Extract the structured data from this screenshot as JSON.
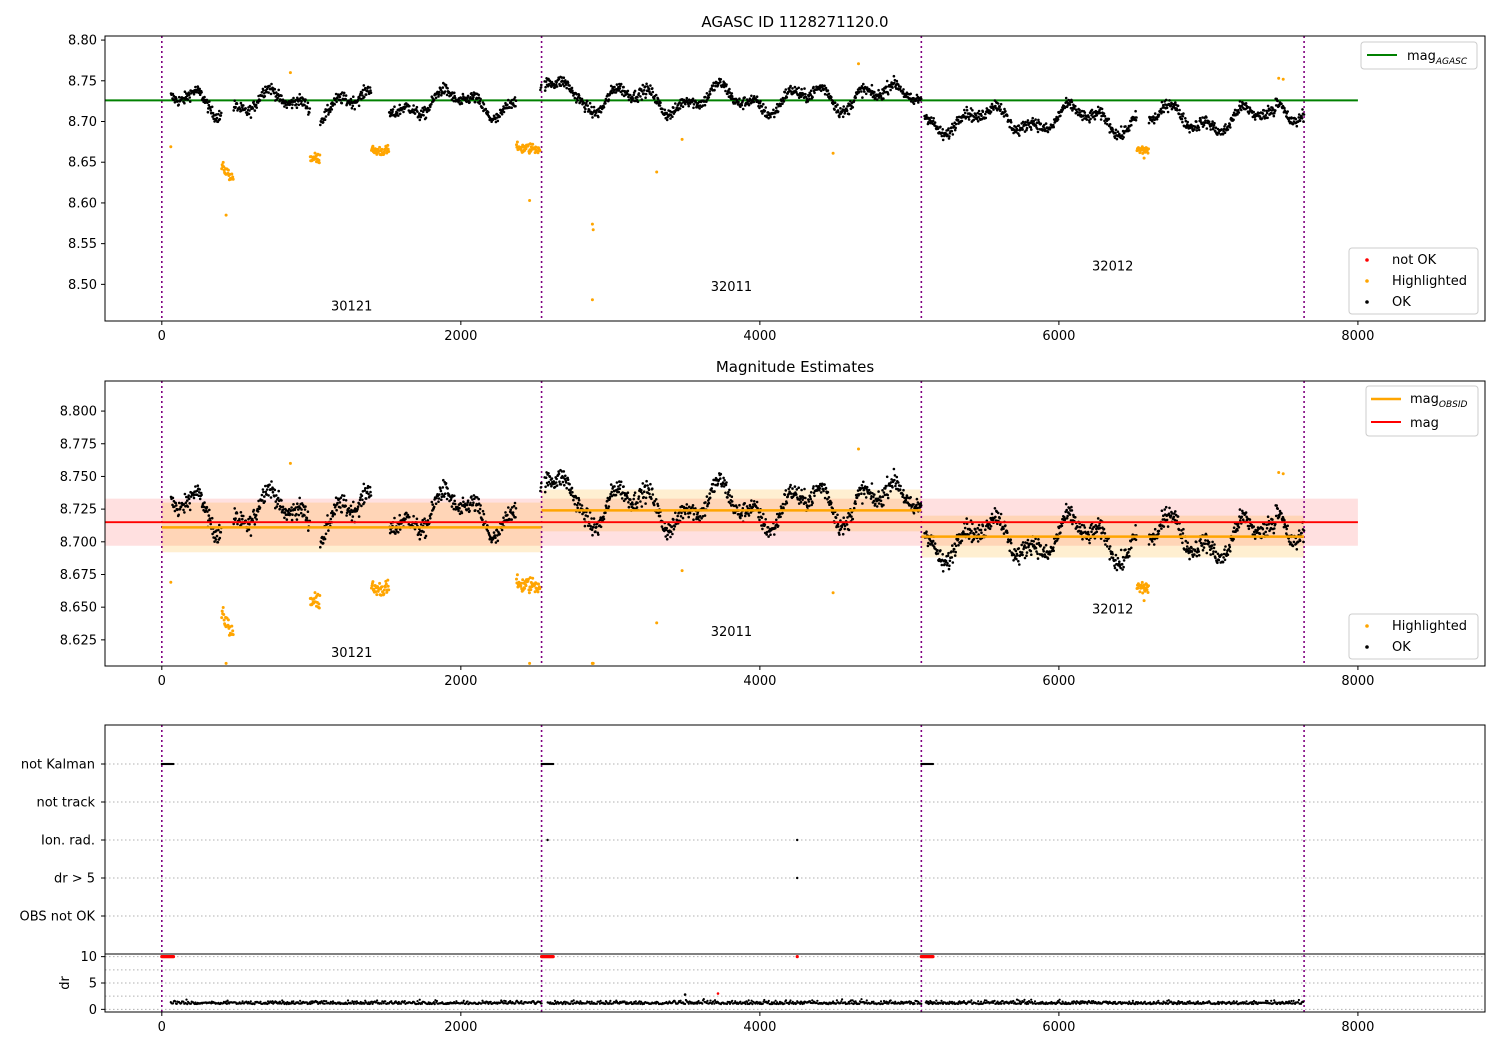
{
  "chart_data": [
    {
      "type": "scatter",
      "title": "AGASC ID 1128271120.0",
      "xlim": [
        -380,
        8850
      ],
      "ylim": [
        8.455,
        8.805
      ],
      "xticks": [
        "0",
        "2000",
        "4000",
        "6000",
        "8000"
      ],
      "xtick_values": [
        0,
        2000,
        4000,
        6000,
        8000
      ],
      "yticks": [
        "8.50",
        "8.55",
        "8.60",
        "8.65",
        "8.70",
        "8.75",
        "8.80"
      ],
      "ytick_values": [
        8.5,
        8.55,
        8.6,
        8.65,
        8.7,
        8.75,
        8.8
      ],
      "obsid_boundaries": [
        0,
        2540,
        5080,
        7640
      ],
      "obsids": [
        {
          "label": "30121",
          "x": 1270,
          "y": 8.468
        },
        {
          "label": "32011",
          "x": 3810,
          "y": 8.492
        },
        {
          "label": "32012",
          "x": 6360,
          "y": 8.517
        }
      ],
      "mag_agasc": {
        "value": 8.726,
        "x_range": [
          -380,
          8000
        ]
      },
      "legend_top": [
        "mag_AGASC"
      ],
      "legend_bottom": [
        "not OK",
        "Highlighted",
        "OK"
      ]
    },
    {
      "type": "scatter",
      "title": "Magnitude Estimates",
      "xlim": [
        -380,
        8850
      ],
      "ylim": [
        8.605,
        8.823
      ],
      "xticks": [
        "0",
        "2000",
        "4000",
        "6000",
        "8000"
      ],
      "xtick_values": [
        0,
        2000,
        4000,
        6000,
        8000
      ],
      "yticks": [
        "8.625",
        "8.650",
        "8.675",
        "8.700",
        "8.725",
        "8.750",
        "8.775",
        "8.800"
      ],
      "ytick_values": [
        8.625,
        8.65,
        8.675,
        8.7,
        8.725,
        8.75,
        8.775,
        8.8
      ],
      "obsid_boundaries": [
        0,
        2540,
        5080,
        7640
      ],
      "obsids": [
        {
          "label": "30121",
          "x": 1270,
          "y": 8.612
        },
        {
          "label": "32011",
          "x": 3810,
          "y": 8.628
        },
        {
          "label": "32012",
          "x": 6360,
          "y": 8.645
        }
      ],
      "mag": {
        "value": 8.715,
        "band": [
          8.697,
          8.733
        ],
        "x_range": [
          -380,
          8000
        ]
      },
      "mag_obsid": [
        {
          "x_range": [
            0,
            2540
          ],
          "value": 8.711,
          "band": [
            8.692,
            8.73
          ]
        },
        {
          "x_range": [
            2540,
            5080
          ],
          "value": 8.724,
          "band": [
            8.708,
            8.74
          ]
        },
        {
          "x_range": [
            5080,
            7640
          ],
          "value": 8.704,
          "band": [
            8.688,
            8.72
          ]
        }
      ],
      "legend_top": [
        "mag_OBSID",
        "mag"
      ],
      "legend_bottom": [
        "Highlighted",
        "OK"
      ]
    },
    {
      "type": "scatter",
      "title": "",
      "xlim": [
        -380,
        8850
      ],
      "xticks": [
        "0",
        "2000",
        "4000",
        "6000",
        "8000"
      ],
      "xtick_values": [
        0,
        2000,
        4000,
        6000,
        8000
      ],
      "flag_rows": [
        "not Kalman",
        "not track",
        "Ion. rad.",
        "dr > 5",
        "OBS not OK"
      ],
      "flag_points": [
        {
          "row": "not Kalman",
          "x_ranges": [
            [
              0,
              80
            ],
            [
              2540,
              2620
            ],
            [
              5080,
              5160
            ]
          ]
        },
        {
          "row": "Ion. rad.",
          "x": [
            2580,
            4250
          ]
        },
        {
          "row": "dr > 5",
          "x": [
            4250
          ]
        }
      ],
      "dr": {
        "ylabel": "dr",
        "ylim": [
          -0.5,
          10.5
        ],
        "yticks": [
          "0",
          "5",
          "10"
        ],
        "ytick_values": [
          0,
          5,
          10
        ],
        "typical": 1.0,
        "outliers": [
          {
            "x": 3500,
            "y": 2.8
          },
          {
            "x": 3720,
            "y": 3.0
          }
        ],
        "red_clip": {
          "y": 10,
          "x_ranges": [
            [
              0,
              80
            ],
            [
              2540,
              2620
            ],
            [
              5080,
              5160
            ]
          ],
          "x": [
            4250
          ]
        }
      }
    }
  ],
  "legend": {
    "mag_agasc": {
      "base": "mag",
      "sub": "AGASC",
      "color": "#008000"
    },
    "mag_obsid": {
      "base": "mag",
      "sub": "OBSID",
      "color": "#ffa500"
    },
    "mag": {
      "base": "mag",
      "color": "#ff0000"
    },
    "not_ok": {
      "label": "not OK",
      "color": "#ff0000"
    },
    "highlighted": {
      "label": "Highlighted",
      "color": "#ffa500"
    },
    "ok": {
      "label": "OK",
      "color": "#000000"
    }
  }
}
